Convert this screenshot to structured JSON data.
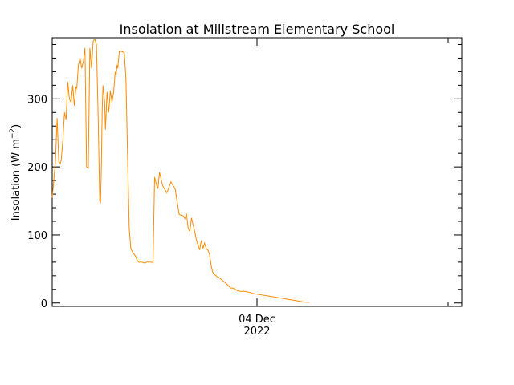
{
  "chart_data": {
    "type": "line",
    "title": "Insolation at Millstream Elementary School",
    "ylabel": "Insolation (W m",
    "ylabel_sup": "−2",
    "ylabel_close": ")",
    "x_tick_label": "04 Dec",
    "x_tick_label_year": "2022",
    "ylim": [
      -5,
      390
    ],
    "xlim": [
      0,
      1
    ],
    "y_ticks": [
      0,
      100,
      200,
      300
    ],
    "y_tick_labels": [
      "0",
      "100",
      "200",
      "300"
    ],
    "line_color": "#ff8c00",
    "grid": false,
    "series": [
      {
        "x": [
          0.0,
          0.004,
          0.008,
          0.012,
          0.016,
          0.02,
          0.022,
          0.026,
          0.03,
          0.034,
          0.038,
          0.042,
          0.046,
          0.05,
          0.054,
          0.058,
          0.06,
          0.064,
          0.068,
          0.072,
          0.076,
          0.08,
          0.084,
          0.088,
          0.092,
          0.096,
          0.1,
          0.104,
          0.108,
          0.112,
          0.116,
          0.118,
          0.12,
          0.122,
          0.124,
          0.128,
          0.13,
          0.134,
          0.138,
          0.142,
          0.146,
          0.15,
          0.154,
          0.156,
          0.158,
          0.16,
          0.164,
          0.17,
          0.176,
          0.18,
          0.184,
          0.188,
          0.192,
          0.196,
          0.2,
          0.204,
          0.208,
          0.212,
          0.216,
          0.22,
          0.224,
          0.228,
          0.232,
          0.236,
          0.24,
          0.244,
          0.246,
          0.25,
          0.254,
          0.258,
          0.262,
          0.27,
          0.28,
          0.29,
          0.3,
          0.31,
          0.32,
          0.324,
          0.328,
          0.332,
          0.336,
          0.34,
          0.344,
          0.348,
          0.352,
          0.356,
          0.36,
          0.364,
          0.368,
          0.372,
          0.376,
          0.38,
          0.384,
          0.388,
          0.392,
          0.396,
          0.4,
          0.404,
          0.408,
          0.412,
          0.416,
          0.42,
          0.424,
          0.428,
          0.432,
          0.436,
          0.44,
          0.444,
          0.448,
          0.452,
          0.46,
          0.47,
          0.48,
          0.49,
          0.5,
          0.51,
          0.52,
          0.53,
          0.54,
          0.55,
          0.56,
          0.57,
          0.58,
          0.59,
          0.6,
          0.61,
          0.62,
          0.628
        ],
        "y": [
          155,
          180,
          210,
          272,
          208,
          205,
          210,
          240,
          280,
          270,
          325,
          300,
          295,
          320,
          290,
          318,
          315,
          350,
          360,
          345,
          355,
          375,
          200,
          198,
          375,
          345,
          385,
          388,
          380,
          280,
          150,
          148,
          200,
          280,
          320,
          295,
          255,
          310,
          280,
          312,
          295,
          310,
          340,
          335,
          350,
          345,
          370,
          370,
          368,
          330,
          220,
          110,
          80,
          75,
          72,
          68,
          62,
          60,
          60,
          60,
          59,
          59,
          61,
          60,
          60,
          60,
          59,
          185,
          175,
          168,
          192,
          172,
          162,
          178,
          168,
          130,
          128,
          124,
          130,
          110,
          105,
          125,
          115,
          105,
          93,
          85,
          78,
          92,
          80,
          88,
          80,
          78,
          72,
          55,
          45,
          42,
          40,
          38,
          37,
          35,
          33,
          31,
          29,
          27,
          24,
          22,
          22,
          21,
          20,
          18,
          17,
          17,
          16,
          14,
          13,
          12,
          11,
          10,
          9,
          8,
          7,
          6,
          5,
          4,
          3,
          2,
          1,
          1
        ]
      }
    ]
  }
}
